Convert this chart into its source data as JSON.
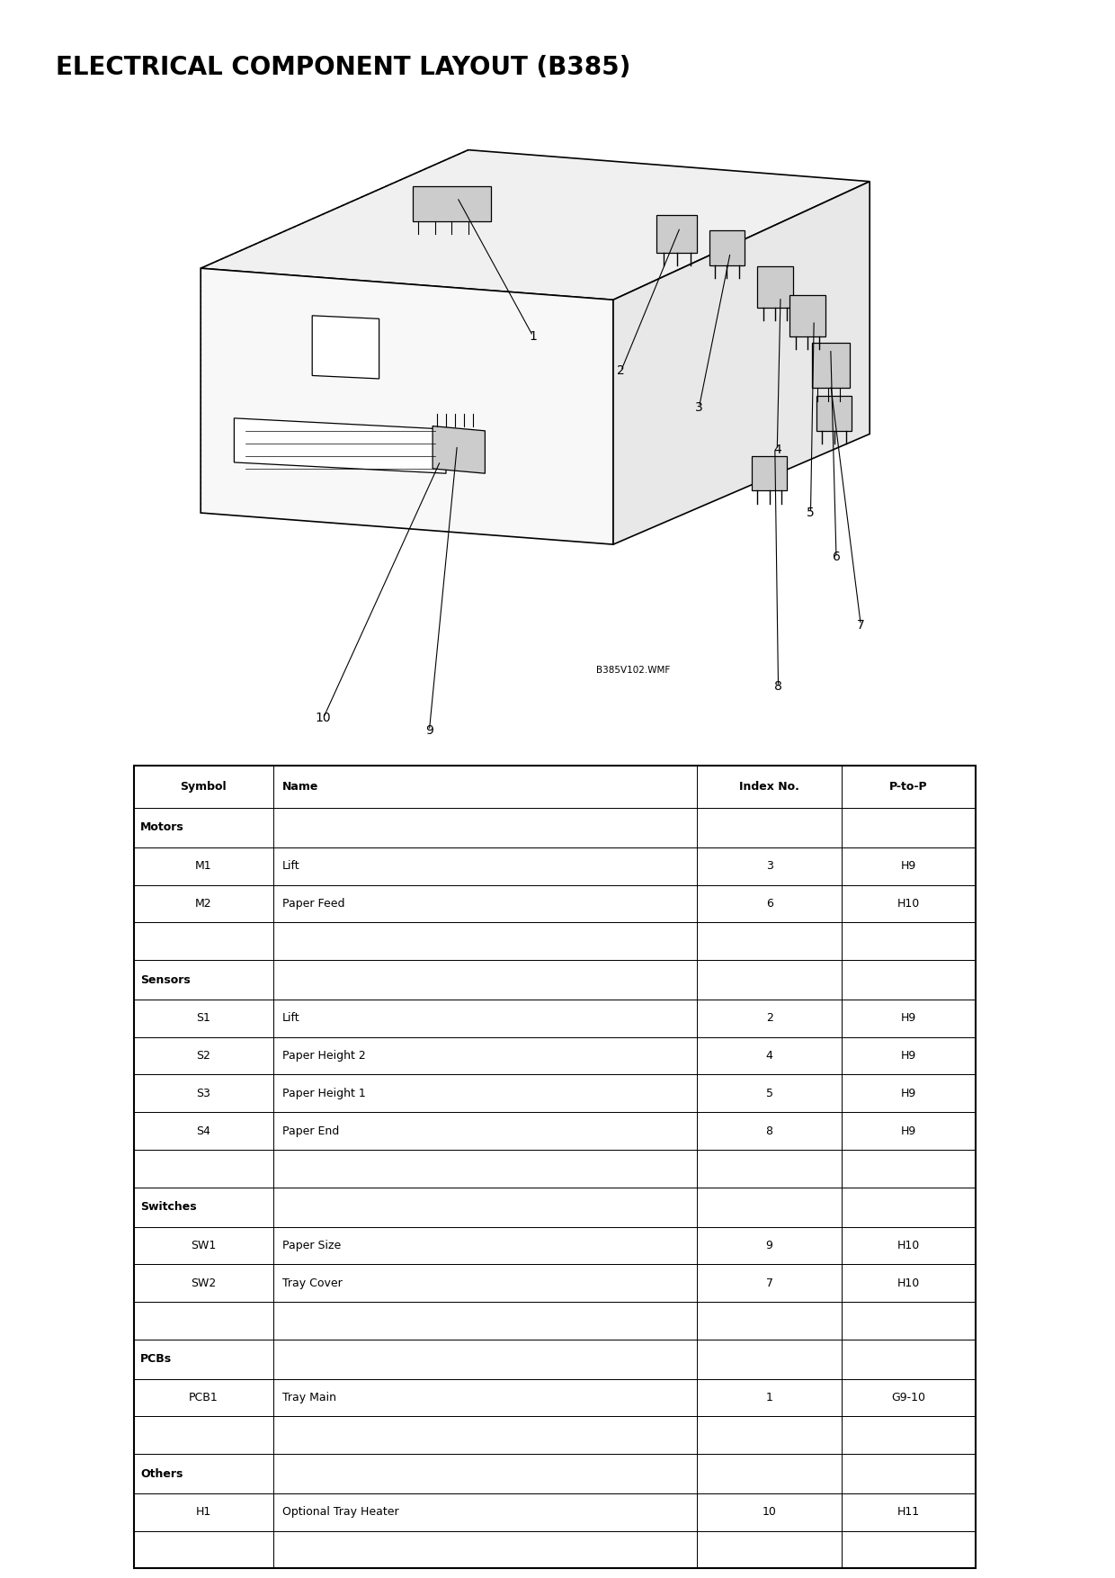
{
  "title": "ELECTRICAL COMPONENT LAYOUT (B385)",
  "title_fontsize": 20,
  "watermark": "B385V102.WMF",
  "table_headers": [
    "Symbol",
    "Name",
    "Index No.",
    "P-to-P"
  ],
  "table_sections": [
    {
      "section": "Motors",
      "rows": [
        [
          "M1",
          "Lift",
          "3",
          "H9"
        ],
        [
          "M2",
          "Paper Feed",
          "6",
          "H10"
        ],
        [
          "",
          "",
          "",
          ""
        ]
      ]
    },
    {
      "section": "Sensors",
      "rows": [
        [
          "S1",
          "Lift",
          "2",
          "H9"
        ],
        [
          "S2",
          "Paper Height 2",
          "4",
          "H9"
        ],
        [
          "S3",
          "Paper Height 1",
          "5",
          "H9"
        ],
        [
          "S4",
          "Paper End",
          "8",
          "H9"
        ],
        [
          "",
          "",
          "",
          ""
        ]
      ]
    },
    {
      "section": "Switches",
      "rows": [
        [
          "SW1",
          "Paper Size",
          "9",
          "H10"
        ],
        [
          "SW2",
          "Tray Cover",
          "7",
          "H10"
        ],
        [
          "",
          "",
          "",
          ""
        ]
      ]
    },
    {
      "section": "PCBs",
      "rows": [
        [
          "PCB1",
          "Tray Main",
          "1",
          "G9-10"
        ],
        [
          "",
          "",
          "",
          ""
        ]
      ]
    },
    {
      "section": "Others",
      "rows": [
        [
          "H1",
          "Optional Tray Heater",
          "10",
          "H11"
        ],
        [
          "",
          "",
          "",
          ""
        ]
      ]
    }
  ],
  "bg_color": "#ffffff",
  "label_info": [
    {
      "num": "1",
      "conn": [
        0.41,
        0.875
      ],
      "label": [
        0.478,
        0.787
      ]
    },
    {
      "num": "2",
      "conn": [
        0.61,
        0.856
      ],
      "label": [
        0.557,
        0.765
      ]
    },
    {
      "num": "3",
      "conn": [
        0.655,
        0.84
      ],
      "label": [
        0.627,
        0.742
      ]
    },
    {
      "num": "4",
      "conn": [
        0.7,
        0.812
      ],
      "label": [
        0.697,
        0.715
      ]
    },
    {
      "num": "5",
      "conn": [
        0.73,
        0.797
      ],
      "label": [
        0.727,
        0.675
      ]
    },
    {
      "num": "6",
      "conn": [
        0.745,
        0.779
      ],
      "label": [
        0.75,
        0.647
      ]
    },
    {
      "num": "7",
      "conn": [
        0.745,
        0.756
      ],
      "label": [
        0.772,
        0.604
      ]
    },
    {
      "num": "8",
      "conn": [
        0.695,
        0.716
      ],
      "label": [
        0.698,
        0.565
      ]
    },
    {
      "num": "9",
      "conn": [
        0.41,
        0.718
      ],
      "label": [
        0.385,
        0.537
      ]
    },
    {
      "num": "10",
      "conn": [
        0.395,
        0.708
      ],
      "label": [
        0.29,
        0.545
      ]
    }
  ]
}
